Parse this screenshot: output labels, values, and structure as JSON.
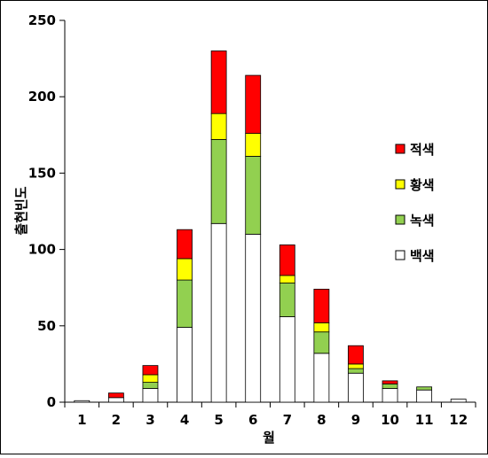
{
  "chart_data": {
    "type": "bar",
    "stacked": true,
    "xlabel": "월",
    "ylabel": "출현빈도",
    "ylim": [
      0,
      250
    ],
    "yticks": [
      0,
      50,
      100,
      150,
      200,
      250
    ],
    "categories": [
      "1",
      "2",
      "3",
      "4",
      "5",
      "6",
      "7",
      "8",
      "9",
      "10",
      "11",
      "12"
    ],
    "series": [
      {
        "name": "백색",
        "color": "#ffffff",
        "values": [
          1,
          3,
          9,
          49,
          117,
          110,
          56,
          32,
          19,
          9,
          8,
          2
        ]
      },
      {
        "name": "녹색",
        "color": "#92d050",
        "values": [
          0,
          0,
          4,
          31,
          55,
          51,
          22,
          14,
          3,
          3,
          2,
          0
        ]
      },
      {
        "name": "황색",
        "color": "#ffff00",
        "values": [
          0,
          0,
          5,
          14,
          17,
          15,
          5,
          6,
          3,
          0,
          0,
          0
        ]
      },
      {
        "name": "적색",
        "color": "#ff0000",
        "values": [
          0,
          3,
          6,
          19,
          41,
          38,
          20,
          22,
          12,
          2,
          0,
          0
        ]
      }
    ],
    "legend": {
      "placement": "right",
      "order": [
        "적색",
        "황색",
        "녹색",
        "백색"
      ]
    },
    "grid": false
  }
}
